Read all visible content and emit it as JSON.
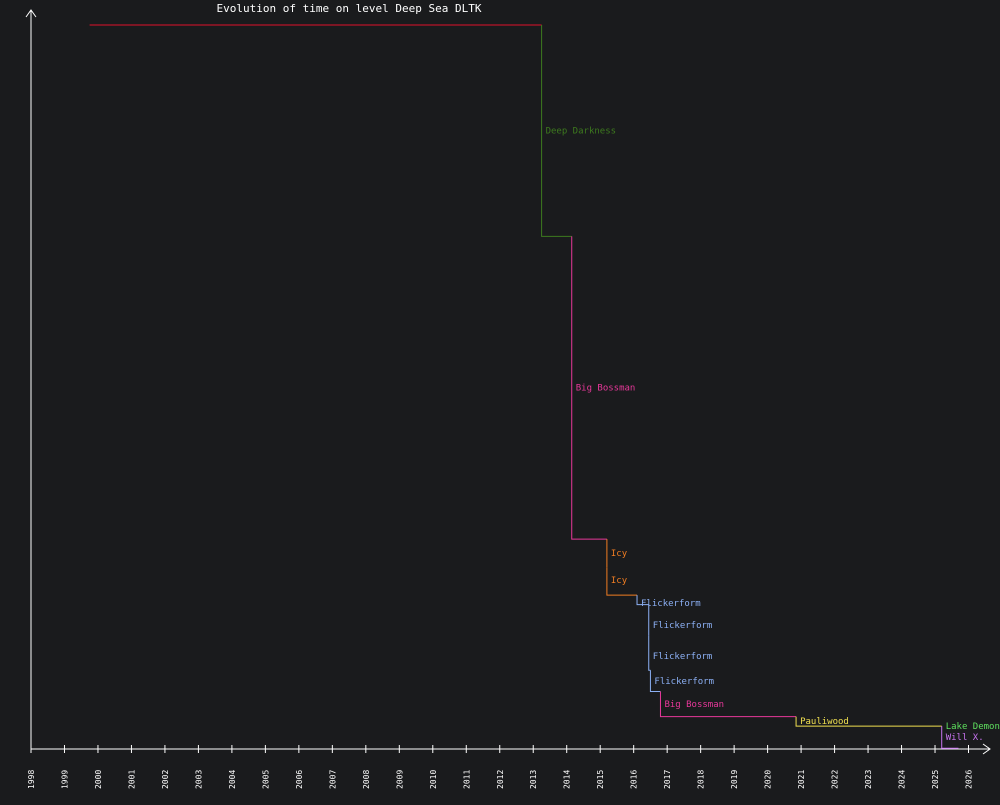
{
  "chart_data": {
    "type": "line",
    "title": "Evolution of time on level Deep Sea DLTK",
    "xlabel": "",
    "ylabel": "",
    "x_ticks": [
      "1998",
      "1999",
      "2000",
      "2001",
      "2002",
      "2003",
      "2004",
      "2005",
      "2006",
      "2007",
      "2008",
      "2009",
      "2010",
      "2011",
      "2012",
      "2013",
      "2014",
      "2015",
      "2016",
      "2017",
      "2018",
      "2019",
      "2020",
      "2021",
      "2022",
      "2023",
      "2024",
      "2025",
      "2026"
    ],
    "xlim": [
      1998,
      2026.5
    ],
    "ylim": [
      0,
      100
    ],
    "grid": false,
    "colors": {
      "background": "#1a1b1d",
      "axis": "#ffffff",
      "initial": "#e0102a",
      "deep_darkness": "#3d7a1e",
      "big_bossman": "#e8389a",
      "icy": "#f07d22",
      "flickerform": "#8cb0f5",
      "pauliwood": "#f0e050",
      "lake_demon": "#5ee05e",
      "will_x": "#c874f0"
    },
    "initial_record": {
      "start": 1999.75,
      "end": 2013.25,
      "value": 98.3,
      "color": "#e0102a"
    },
    "improvements": [
      {
        "holder": "Deep Darkness",
        "date": 2013.25,
        "value": 69.6,
        "color": "#3d7a1e"
      },
      {
        "holder": "Big Bossman",
        "date": 2014.15,
        "value": 28.5,
        "color": "#e8389a"
      },
      {
        "holder": "Icy",
        "date": 2015.2,
        "value": 24.6,
        "color": "#f07d22"
      },
      {
        "holder": "Icy",
        "date": 2015.2,
        "value": 20.9,
        "color": "#f07d22"
      },
      {
        "holder": "Flickerform",
        "date": 2016.1,
        "value": 19.6,
        "color": "#8cb0f5"
      },
      {
        "holder": "Flickerform",
        "date": 2016.45,
        "value": 15.4,
        "color": "#8cb0f5"
      },
      {
        "holder": "Flickerform",
        "date": 2016.45,
        "value": 10.7,
        "color": "#8cb0f5"
      },
      {
        "holder": "Flickerform",
        "date": 2016.5,
        "value": 7.8,
        "color": "#8cb0f5"
      },
      {
        "holder": "Big Bossman",
        "date": 2016.8,
        "value": 4.4,
        "color": "#e8389a"
      },
      {
        "holder": "Pauliwood",
        "date": 2020.85,
        "value": 3.1,
        "color": "#f0e050"
      },
      {
        "holder": "Lake Demon",
        "date": 2025.2,
        "value": 3.1,
        "color": "#5ee05e"
      },
      {
        "holder": "Will X.",
        "date": 2025.2,
        "value": 0.1,
        "color": "#c874f0"
      }
    ]
  }
}
